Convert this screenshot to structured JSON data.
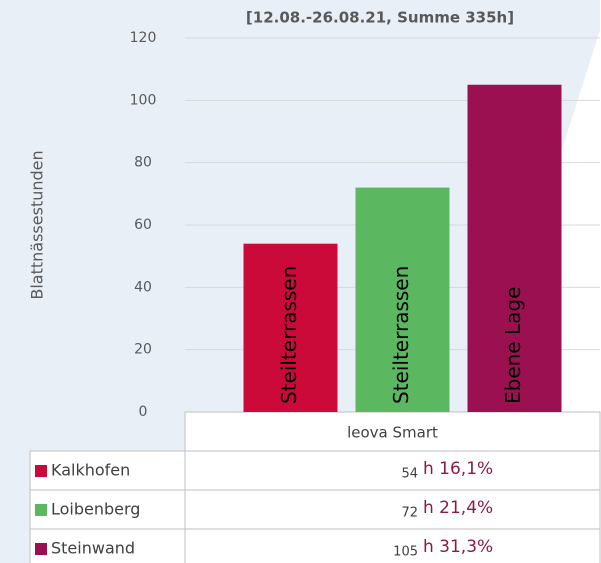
{
  "chart_data": {
    "type": "bar",
    "title": "[12.08.-26.08.21, Summe 335h]",
    "y_label": "Blattnässestunden",
    "categories": [
      "leova Smart"
    ],
    "series": [
      {
        "name": "Kalkhofen",
        "color": "#cc0a3a",
        "values": [
          54
        ],
        "label": "Steilterrassen",
        "annotation": "h 16,1%"
      },
      {
        "name": "Loibenberg",
        "color": "#5cb860",
        "values": [
          72
        ],
        "label": "Steilterrassen",
        "annotation": "h 21,4%"
      },
      {
        "name": "Steinwand",
        "color": "#9b1050",
        "values": [
          105
        ],
        "label": "Ebene Lage",
        "annotation": "h 31,3%"
      }
    ],
    "ylim": [
      0,
      120
    ],
    "yticks": [
      0,
      20,
      40,
      60,
      80,
      100,
      120
    ],
    "grid": true
  }
}
